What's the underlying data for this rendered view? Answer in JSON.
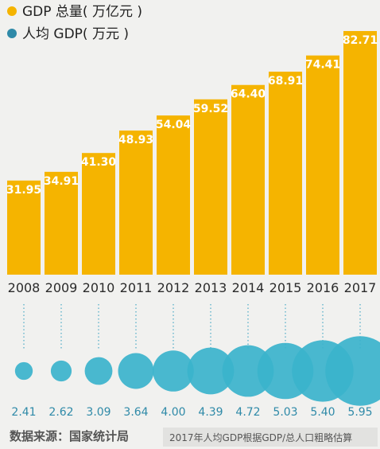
{
  "colors": {
    "gdp_bar": "#f5b400",
    "per_capita_bubble": "#3bb3cc",
    "background": "#f1f1ef"
  },
  "footer": {
    "source": "数据来源：国家统计局",
    "note": "2017年人均GDP根据GDP/总人口粗略估算"
  },
  "chart_data": {
    "type": "bar",
    "categories": [
      "2008",
      "2009",
      "2010",
      "2011",
      "2012",
      "2013",
      "2014",
      "2015",
      "2016",
      "2017"
    ],
    "series": [
      {
        "name": "GDP 总量( 万亿元 )",
        "values": [
          31.95,
          34.91,
          41.3,
          48.93,
          54.04,
          59.52,
          64.4,
          68.91,
          74.41,
          82.71
        ],
        "labels": [
          "31.95",
          "34.91",
          "41.30",
          "48.93",
          "54.04",
          "59.52",
          "64.40",
          "68.91",
          "74.41",
          "82.71"
        ],
        "mark": "bar"
      },
      {
        "name": "人均 GDP( 万元 )",
        "values": [
          2.41,
          2.62,
          3.09,
          3.64,
          4.0,
          4.39,
          4.72,
          5.03,
          5.4,
          5.95
        ],
        "labels": [
          "2.41",
          "2.62",
          "3.09",
          "3.64",
          "4.00",
          "4.39",
          "4.72",
          "5.03",
          "5.40",
          "5.95"
        ],
        "mark": "bubble"
      }
    ],
    "legend_position": "top-left",
    "grid": false
  }
}
